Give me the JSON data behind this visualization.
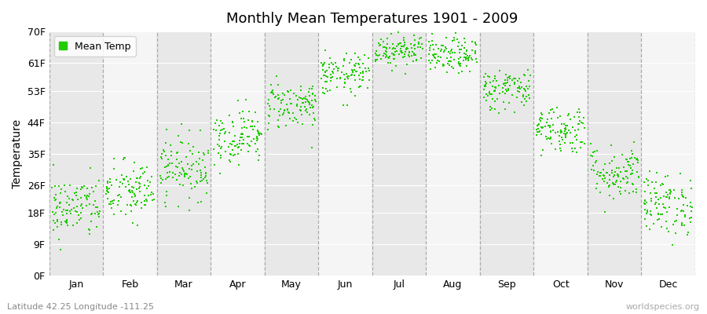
{
  "title": "Monthly Mean Temperatures 1901 - 2009",
  "ylabel": "Temperature",
  "xlabel_bottom_left": "Latitude 42.25 Longitude -111.25",
  "xlabel_bottom_right": "worldspecies.org",
  "legend_label": "Mean Temp",
  "dot_color": "#22cc00",
  "background_color": "#ffffff",
  "plot_bg_even": "#ebebeb",
  "plot_bg_odd": "#f5f5f5",
  "stripe_color_light": "#f5f5f5",
  "stripe_color_dark": "#e8e8e8",
  "ytick_labels": [
    "0F",
    "9F",
    "18F",
    "26F",
    "35F",
    "44F",
    "53F",
    "61F",
    "70F"
  ],
  "ytick_values": [
    0,
    9,
    18,
    26,
    35,
    44,
    53,
    61,
    70
  ],
  "months": [
    "Jan",
    "Feb",
    "Mar",
    "Apr",
    "May",
    "Jun",
    "Jul",
    "Aug",
    "Sep",
    "Oct",
    "Nov",
    "Dec"
  ],
  "month_mean_temps_F": [
    19.5,
    24.0,
    31.0,
    40.0,
    49.0,
    57.5,
    65.0,
    63.0,
    53.5,
    42.0,
    29.5,
    20.5
  ],
  "month_std_temps_F": [
    4.5,
    4.5,
    4.5,
    4.0,
    3.5,
    3.0,
    2.5,
    2.5,
    3.0,
    3.5,
    4.0,
    4.5
  ],
  "num_years": 109,
  "seed": 42,
  "dot_size": 4
}
